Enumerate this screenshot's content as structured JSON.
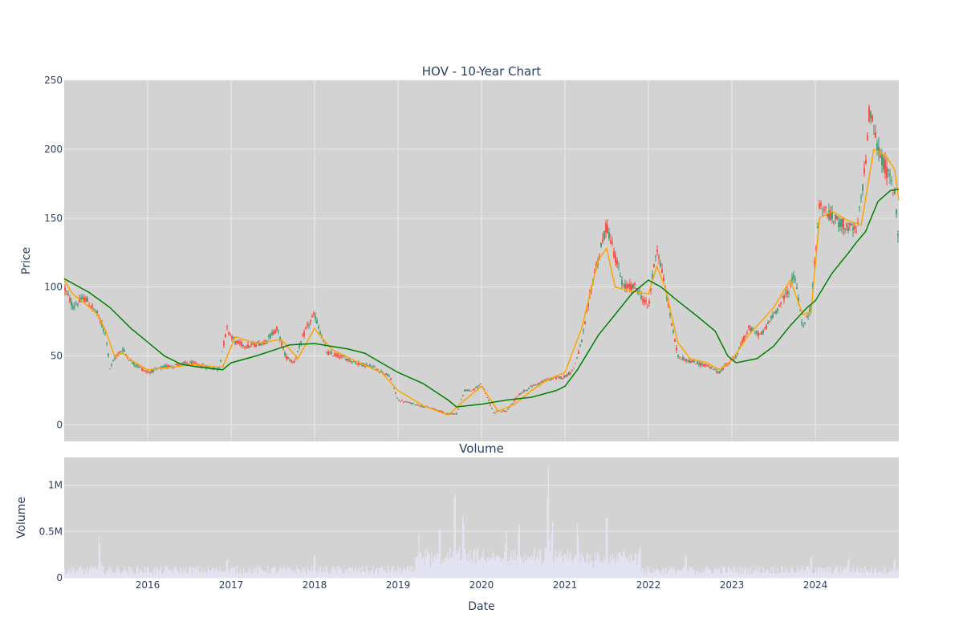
{
  "chart_data": [
    {
      "type": "candlestick",
      "title": "HOV - 10-Year Chart",
      "ylabel": "Price",
      "xlabel": "",
      "xlim": [
        "2015-01-01",
        "2024-12-31"
      ],
      "ylim": [
        -12,
        250
      ],
      "yticks": [
        0,
        50,
        100,
        150,
        200,
        250
      ],
      "ytick_labels": [
        "0",
        "50",
        "100",
        "150",
        "200",
        "250"
      ],
      "grid": true,
      "up_color": "#3d9970",
      "down_color": "#ff4136",
      "price_anchors": {
        "t": [
          2015.0,
          2015.1,
          2015.25,
          2015.4,
          2015.5,
          2015.55,
          2015.6,
          2015.7,
          2015.8,
          2016.0,
          2016.2,
          2016.5,
          2016.7,
          2016.85,
          2016.95,
          2017.05,
          2017.2,
          2017.4,
          2017.55,
          2017.65,
          2017.75,
          2017.9,
          2018.0,
          2018.15,
          2018.3,
          2018.5,
          2018.7,
          2018.9,
          2019.0,
          2019.2,
          2019.4,
          2019.6,
          2019.7,
          2019.8,
          2019.9,
          2020.0,
          2020.15,
          2020.2,
          2020.3,
          2020.45,
          2020.6,
          2020.8,
          2021.0,
          2021.1,
          2021.2,
          2021.35,
          2021.4,
          2021.5,
          2021.7,
          2021.85,
          2022.0,
          2022.1,
          2022.2,
          2022.35,
          2022.5,
          2022.7,
          2022.85,
          2022.95,
          2023.05,
          2023.2,
          2023.35,
          2023.5,
          2023.7,
          2023.75,
          2023.85,
          2023.95,
          2024.05,
          2024.2,
          2024.35,
          2024.5,
          2024.6,
          2024.65,
          2024.75,
          2024.85,
          2024.95,
          2025.0
        ],
        "v": [
          100,
          86,
          92,
          80,
          65,
          40,
          48,
          55,
          46,
          38,
          42,
          45,
          42,
          40,
          70,
          60,
          57,
          60,
          70,
          50,
          45,
          70,
          80,
          52,
          50,
          45,
          42,
          35,
          18,
          15,
          12,
          8,
          8,
          25,
          25,
          30,
          8,
          10,
          10,
          22,
          28,
          33,
          35,
          40,
          60,
          110,
          120,
          145,
          100,
          100,
          85,
          130,
          100,
          50,
          46,
          43,
          38,
          45,
          50,
          70,
          65,
          80,
          100,
          110,
          70,
          85,
          160,
          150,
          145,
          140,
          190,
          230,
          200,
          185,
          170,
          132
        ]
      },
      "ma_fast": {
        "name": "",
        "color": "#ffa500",
        "points": [
          [
            2015.0,
            105
          ],
          [
            2015.1,
            95
          ],
          [
            2015.25,
            88
          ],
          [
            2015.4,
            80
          ],
          [
            2015.5,
            68
          ],
          [
            2015.6,
            50
          ],
          [
            2015.7,
            52
          ],
          [
            2015.8,
            47
          ],
          [
            2016.0,
            40
          ],
          [
            2016.3,
            42
          ],
          [
            2016.6,
            44
          ],
          [
            2016.8,
            42
          ],
          [
            2016.9,
            42
          ],
          [
            2017.05,
            64
          ],
          [
            2017.3,
            59
          ],
          [
            2017.6,
            62
          ],
          [
            2017.8,
            48
          ],
          [
            2018.0,
            70
          ],
          [
            2018.2,
            55
          ],
          [
            2018.5,
            46
          ],
          [
            2018.8,
            38
          ],
          [
            2019.0,
            25
          ],
          [
            2019.3,
            14
          ],
          [
            2019.6,
            7
          ],
          [
            2019.8,
            18
          ],
          [
            2020.0,
            28
          ],
          [
            2020.2,
            10
          ],
          [
            2020.4,
            15
          ],
          [
            2020.6,
            25
          ],
          [
            2020.8,
            33
          ],
          [
            2021.0,
            38
          ],
          [
            2021.2,
            70
          ],
          [
            2021.4,
            120
          ],
          [
            2021.5,
            128
          ],
          [
            2021.6,
            100
          ],
          [
            2021.8,
            97
          ],
          [
            2022.0,
            95
          ],
          [
            2022.1,
            115
          ],
          [
            2022.2,
            100
          ],
          [
            2022.35,
            60
          ],
          [
            2022.5,
            48
          ],
          [
            2022.7,
            45
          ],
          [
            2022.85,
            40
          ],
          [
            2023.0,
            47
          ],
          [
            2023.2,
            65
          ],
          [
            2023.5,
            85
          ],
          [
            2023.7,
            105
          ],
          [
            2023.85,
            80
          ],
          [
            2023.95,
            82
          ],
          [
            2024.05,
            150
          ],
          [
            2024.2,
            155
          ],
          [
            2024.4,
            148
          ],
          [
            2024.55,
            145
          ],
          [
            2024.7,
            200
          ],
          [
            2024.85,
            195
          ],
          [
            2024.95,
            185
          ],
          [
            2025.0,
            163
          ]
        ]
      },
      "ma_slow": {
        "name": "",
        "color": "#008000",
        "points": [
          [
            2015.0,
            106
          ],
          [
            2015.3,
            96
          ],
          [
            2015.55,
            85
          ],
          [
            2015.8,
            70
          ],
          [
            2016.0,
            60
          ],
          [
            2016.2,
            50
          ],
          [
            2016.4,
            44
          ],
          [
            2016.6,
            42
          ],
          [
            2016.9,
            40
          ],
          [
            2017.0,
            45
          ],
          [
            2017.3,
            50
          ],
          [
            2017.6,
            56
          ],
          [
            2017.7,
            58
          ],
          [
            2018.0,
            59
          ],
          [
            2018.2,
            57
          ],
          [
            2018.4,
            55
          ],
          [
            2018.6,
            52
          ],
          [
            2018.8,
            45
          ],
          [
            2019.0,
            38
          ],
          [
            2019.3,
            30
          ],
          [
            2019.6,
            18
          ],
          [
            2019.7,
            13
          ],
          [
            2020.0,
            15
          ],
          [
            2020.3,
            18
          ],
          [
            2020.6,
            20
          ],
          [
            2020.9,
            25
          ],
          [
            2021.0,
            28
          ],
          [
            2021.15,
            40
          ],
          [
            2021.4,
            65
          ],
          [
            2021.6,
            80
          ],
          [
            2021.8,
            95
          ],
          [
            2022.0,
            105
          ],
          [
            2022.15,
            100
          ],
          [
            2022.35,
            90
          ],
          [
            2022.6,
            78
          ],
          [
            2022.8,
            68
          ],
          [
            2022.95,
            50
          ],
          [
            2023.05,
            45
          ],
          [
            2023.3,
            48
          ],
          [
            2023.5,
            57
          ],
          [
            2023.7,
            72
          ],
          [
            2023.9,
            85
          ],
          [
            2024.0,
            90
          ],
          [
            2024.2,
            110
          ],
          [
            2024.4,
            125
          ],
          [
            2024.5,
            133
          ],
          [
            2024.6,
            140
          ],
          [
            2024.75,
            162
          ],
          [
            2024.9,
            170
          ],
          [
            2025.0,
            171
          ]
        ]
      }
    },
    {
      "type": "bar",
      "title": "Volume",
      "ylabel": "Volume",
      "xlabel": "Date",
      "ylim": [
        0,
        1300000
      ],
      "yticks": [
        0,
        500000,
        1000000
      ],
      "ytick_labels": [
        "0",
        "0.5M",
        "1M"
      ],
      "xticks": [
        "2016-01-01",
        "2017-01-01",
        "2018-01-01",
        "2019-01-01",
        "2020-01-01",
        "2021-01-01",
        "2022-01-01",
        "2023-01-01",
        "2024-01-01"
      ],
      "xtick_labels": [
        "2016",
        "2017",
        "2018",
        "2019",
        "2020",
        "2021",
        "2022",
        "2023",
        "2024"
      ],
      "grid": true,
      "bar_color": "#e4e4f5",
      "peaks": [
        [
          2015.42,
          470000
        ],
        [
          2016.95,
          230000
        ],
        [
          2018.0,
          280000
        ],
        [
          2019.25,
          460000
        ],
        [
          2019.5,
          620000
        ],
        [
          2019.68,
          1060000
        ],
        [
          2019.78,
          750000
        ],
        [
          2020.3,
          520000
        ],
        [
          2020.45,
          650000
        ],
        [
          2020.8,
          1230000
        ],
        [
          2020.85,
          650000
        ],
        [
          2021.15,
          620000
        ],
        [
          2021.5,
          770000
        ],
        [
          2021.9,
          380000
        ],
        [
          2022.45,
          280000
        ],
        [
          2023.95,
          260000
        ],
        [
          2024.4,
          240000
        ],
        [
          2024.95,
          230000
        ]
      ]
    }
  ]
}
